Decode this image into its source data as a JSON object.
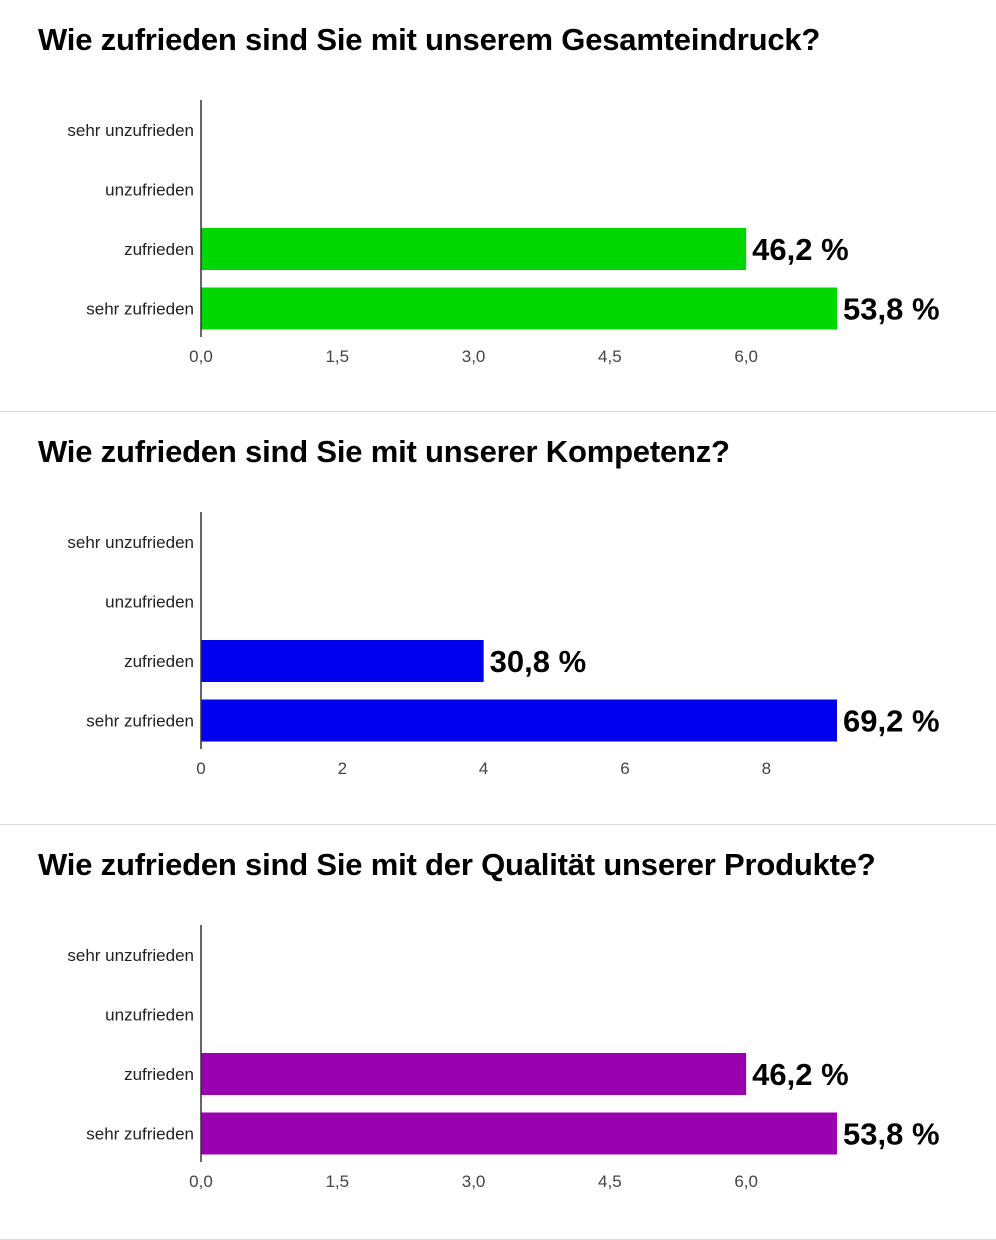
{
  "chart_data": [
    {
      "type": "bar",
      "orientation": "horizontal",
      "title": "Wie zufrieden sind Sie mit unserem Gesamteindruck?",
      "categories": [
        "sehr unzufrieden",
        "unzufrieden",
        "zufrieden",
        "sehr zufrieden"
      ],
      "values": [
        0,
        0,
        6,
        7
      ],
      "data_labels": [
        "",
        "",
        "46,2 %",
        "53,8 %"
      ],
      "xticks": [
        0,
        1.5,
        3,
        4.5,
        6
      ],
      "xtick_labels": [
        "0,0",
        "1,5",
        "3,0",
        "4,5",
        "6,0"
      ],
      "xlim": [
        0,
        7
      ],
      "color": "#00d600",
      "grid": false
    },
    {
      "type": "bar",
      "orientation": "horizontal",
      "title": "Wie zufrieden sind Sie mit unserer Kompetenz?",
      "categories": [
        "sehr unzufrieden",
        "unzufrieden",
        "zufrieden",
        "sehr zufrieden"
      ],
      "values": [
        0,
        0,
        4,
        9
      ],
      "data_labels": [
        "",
        "",
        "30,8 %",
        "69,2 %"
      ],
      "xticks": [
        0,
        2,
        4,
        6,
        8
      ],
      "xtick_labels": [
        "0",
        "2",
        "4",
        "6",
        "8"
      ],
      "xlim": [
        0,
        9
      ],
      "color": "#0000ee",
      "grid": false
    },
    {
      "type": "bar",
      "orientation": "horizontal",
      "title": "Wie zufrieden sind Sie mit der Qualität unserer Produkte?",
      "categories": [
        "sehr unzufrieden",
        "unzufrieden",
        "zufrieden",
        "sehr zufrieden"
      ],
      "values": [
        0,
        0,
        6,
        7
      ],
      "data_labels": [
        "",
        "",
        "46,2 %",
        "53,8 %"
      ],
      "xticks": [
        0,
        1.5,
        3,
        4.5,
        6
      ],
      "xtick_labels": [
        "0,0",
        "1,5",
        "3,0",
        "4,5",
        "6,0"
      ],
      "xlim": [
        0,
        7
      ],
      "color": "#9900b0",
      "grid": false
    }
  ]
}
